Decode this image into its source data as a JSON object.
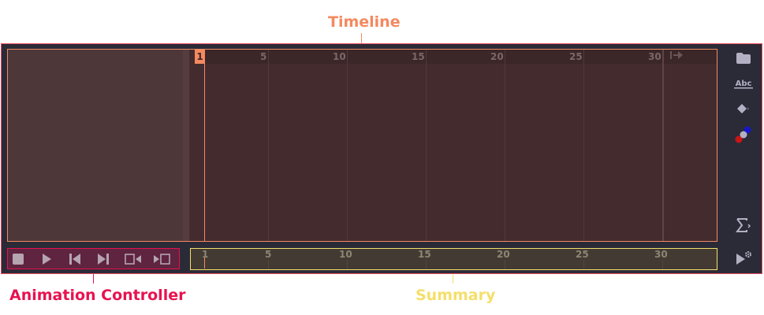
{
  "callouts": {
    "timeline": "Timeline",
    "animation_controller": "Animation Controller",
    "summary": "Summary"
  },
  "timeline": {
    "current_frame": "1",
    "ruler_labels": [
      "5",
      "10",
      "15",
      "20",
      "25",
      "30"
    ],
    "frame_range": [
      1,
      30
    ],
    "end_marker_icon": "end-frame-arrow-icon"
  },
  "summary": {
    "ruler_labels": [
      "1",
      "5",
      "10",
      "15",
      "20",
      "25",
      "30"
    ]
  },
  "animation_controller": {
    "buttons": [
      "stop-icon",
      "play-icon",
      "step-back-icon",
      "step-forward-icon",
      "jump-start-icon",
      "jump-end-icon"
    ]
  },
  "side_panel": {
    "icons": [
      "folder-icon",
      "text-track-icon",
      "keyframe-icon",
      "color-track-icon",
      "formula-track-icon",
      "play-settings-icon"
    ]
  },
  "colors": {
    "timeline_accent": "#f4895f",
    "animation_controller_accent": "#e8124f",
    "summary_accent": "#f5df6a",
    "frame_border": "#e84a5f"
  }
}
